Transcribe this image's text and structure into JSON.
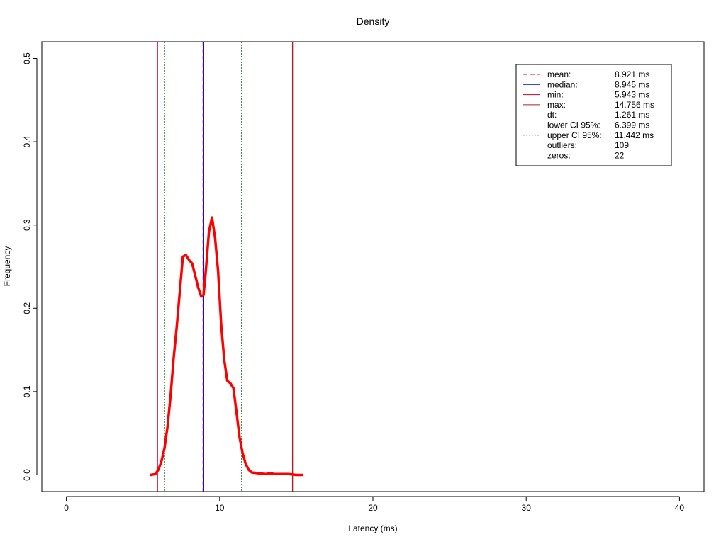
{
  "chart_data": {
    "type": "line",
    "title": "Density",
    "xlabel": "Latency (ms)",
    "ylabel": "Frequency",
    "xlim": [
      -1.6,
      41.6
    ],
    "ylim": [
      -0.02,
      0.52
    ],
    "xticks": [
      0,
      10,
      20,
      30,
      40
    ],
    "yticks": [
      0.0,
      0.1,
      0.2,
      0.3,
      0.4,
      0.5
    ],
    "xtick_labels": [
      "0",
      "10",
      "20",
      "30",
      "40"
    ],
    "ytick_labels": [
      "0.0",
      "0.1",
      "0.2",
      "0.3",
      "0.4",
      "0.5"
    ],
    "grid": false,
    "baseline": 0,
    "colors": {
      "density": "#ff0000",
      "mean": "#ff0000",
      "median": "#0000ff",
      "min": "#cc0033",
      "max": "#aa2222",
      "ci": "#006400",
      "baseline": "#555555"
    },
    "series": [
      {
        "x": [
          5.5,
          5.8,
          6.0,
          6.2,
          6.4,
          6.6,
          6.8,
          7.0,
          7.2,
          7.4,
          7.6,
          7.8,
          8.0,
          8.2,
          8.4,
          8.6,
          8.8,
          8.95,
          9.1,
          9.3,
          9.5,
          9.7,
          9.9,
          10.1,
          10.3,
          10.5,
          10.7,
          10.9,
          11.1,
          11.3,
          11.5,
          11.7,
          11.9,
          12.1,
          12.5,
          13.0,
          13.3,
          13.6,
          14.0,
          14.5,
          15.0,
          15.4
        ],
        "y": [
          0.0,
          0.001,
          0.006,
          0.016,
          0.032,
          0.058,
          0.095,
          0.14,
          0.178,
          0.22,
          0.262,
          0.264,
          0.258,
          0.254,
          0.24,
          0.225,
          0.214,
          0.216,
          0.245,
          0.292,
          0.309,
          0.285,
          0.245,
          0.18,
          0.138,
          0.113,
          0.11,
          0.104,
          0.075,
          0.045,
          0.026,
          0.013,
          0.006,
          0.003,
          0.002,
          0.001,
          0.002,
          0.001,
          0.001,
          0.001,
          0.0,
          0.0
        ]
      }
    ],
    "vlines": [
      {
        "label": "min",
        "x": 5.943,
        "style": "solid",
        "color": "#cc0033"
      },
      {
        "label": "lower CI",
        "x": 6.399,
        "style": "dotted",
        "color": "#006400"
      },
      {
        "label": "median",
        "x": 8.945,
        "style": "solid",
        "color": "#0000ff"
      },
      {
        "label": "mean",
        "x": 8.921,
        "style": "dashed",
        "color": "#ff0000"
      },
      {
        "label": "upper CI",
        "x": 11.442,
        "style": "dotted",
        "color": "#006400"
      },
      {
        "label": "max",
        "x": 14.756,
        "style": "solid",
        "color": "#aa2222"
      }
    ],
    "legend": {
      "position": "top-right",
      "entries": [
        {
          "label": "mean:",
          "value": "8.921 ms",
          "style": "dashed",
          "color": "#ff0000"
        },
        {
          "label": "median:",
          "value": "8.945 ms",
          "style": "solid",
          "color": "#0000ff"
        },
        {
          "label": "min:",
          "value": "5.943 ms",
          "style": "solid",
          "color": "#cc0033"
        },
        {
          "label": "max:",
          "value": "14.756 ms",
          "style": "solid",
          "color": "#aa2222"
        },
        {
          "label": "dt:",
          "value": "1.261 ms",
          "style": "none",
          "color": ""
        },
        {
          "label": "lower CI 95%:",
          "value": "6.399 ms",
          "style": "dotted",
          "color": "#006400"
        },
        {
          "label": "upper CI 95%:",
          "value": "11.442 ms",
          "style": "dotted",
          "color": "#006400"
        },
        {
          "label": "outliers:",
          "value": "109",
          "style": "none",
          "color": ""
        },
        {
          "label": "zeros:",
          "value": "22",
          "style": "none",
          "color": ""
        }
      ]
    }
  }
}
